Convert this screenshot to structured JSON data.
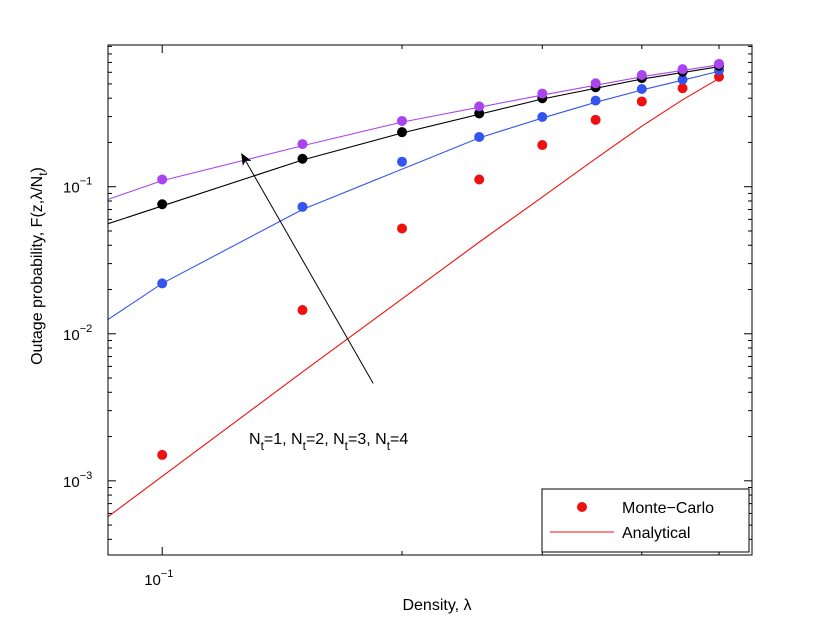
{
  "chart_data": {
    "type": "line",
    "title": "",
    "xlabel": "Density, λ",
    "ylabel": "Outage probability, F(z,λ/N",
    "ylabel_sub": "t",
    "ylabel_close": ")",
    "xscale": "log",
    "yscale": "log",
    "xlim": [
      0.0855,
      0.55
    ],
    "ylim": [
      0.000313,
      0.92
    ],
    "x_ticks": [
      {
        "value": 0.1,
        "base": "10",
        "exp": "−1"
      }
    ],
    "y_ticks": [
      {
        "value": 0.001,
        "base": "10",
        "exp": "−3"
      },
      {
        "value": 0.01,
        "base": "10",
        "exp": "−2"
      },
      {
        "value": 0.1,
        "base": "10",
        "exp": "−1"
      }
    ],
    "x_minor_ticks": [
      0.2,
      0.3,
      0.4,
      0.5
    ],
    "y_minor_ticks": [
      0.0004,
      0.0005,
      0.0006,
      0.0007,
      0.0008,
      0.0009,
      0.002,
      0.003,
      0.004,
      0.005,
      0.006,
      0.007,
      0.008,
      0.009,
      0.02,
      0.03,
      0.04,
      0.05,
      0.06,
      0.07,
      0.08,
      0.09,
      0.2,
      0.3,
      0.4,
      0.5,
      0.6,
      0.7,
      0.8,
      0.9
    ],
    "series": [
      {
        "name": "N_t=1",
        "color": "#ee1111",
        "analytical": {
          "x": [
            0.0855,
            0.15,
            0.25,
            0.3,
            0.35,
            0.4,
            0.45,
            0.5
          ],
          "y": [
            0.00057,
            0.0055,
            0.042,
            0.085,
            0.155,
            0.258,
            0.39,
            0.545
          ]
        },
        "monte_carlo": {
          "x": [
            0.1,
            0.15,
            0.2,
            0.25,
            0.3,
            0.35,
            0.4,
            0.45,
            0.5
          ],
          "y": [
            0.0015,
            0.0145,
            0.052,
            0.112,
            0.192,
            0.285,
            0.38,
            0.468,
            0.56
          ]
        }
      },
      {
        "name": "N_t=2",
        "color": "#3355ee",
        "analytical": {
          "x": [
            0.0855,
            0.1,
            0.15,
            0.25,
            0.3,
            0.35,
            0.4,
            0.45,
            0.5
          ],
          "y": [
            0.0125,
            0.022,
            0.07,
            0.215,
            0.293,
            0.375,
            0.455,
            0.53,
            0.61
          ]
        },
        "monte_carlo": {
          "x": [
            0.1,
            0.15,
            0.2,
            0.25,
            0.3,
            0.35,
            0.4,
            0.45,
            0.5
          ],
          "y": [
            0.022,
            0.073,
            0.148,
            0.218,
            0.298,
            0.385,
            0.462,
            0.535,
            0.62
          ]
        }
      },
      {
        "name": "N_t=3",
        "color": "#000000",
        "analytical": {
          "x": [
            0.0855,
            0.1,
            0.15,
            0.2,
            0.3,
            0.4,
            0.5
          ],
          "y": [
            0.056,
            0.074,
            0.152,
            0.232,
            0.395,
            0.54,
            0.655
          ]
        },
        "monte_carlo": {
          "x": [
            0.1,
            0.15,
            0.2,
            0.25,
            0.3,
            0.35,
            0.4,
            0.45,
            0.5
          ],
          "y": [
            0.076,
            0.155,
            0.235,
            0.315,
            0.4,
            0.475,
            0.548,
            0.605,
            0.665
          ]
        }
      },
      {
        "name": "N_t=4",
        "color": "#aa44ee",
        "analytical": {
          "x": [
            0.0855,
            0.1,
            0.15,
            0.2,
            0.3,
            0.4,
            0.5
          ],
          "y": [
            0.082,
            0.11,
            0.19,
            0.275,
            0.42,
            0.56,
            0.675
          ]
        },
        "monte_carlo": {
          "x": [
            0.1,
            0.15,
            0.2,
            0.25,
            0.3,
            0.35,
            0.4,
            0.45,
            0.5
          ],
          "y": [
            0.112,
            0.195,
            0.28,
            0.352,
            0.43,
            0.505,
            0.575,
            0.63,
            0.685
          ]
        }
      }
    ],
    "annotation": {
      "parts": [
        {
          "base": "N",
          "sub": "t",
          "rest": "=1, "
        },
        {
          "base": "N",
          "sub": "t",
          "rest": "=2, "
        },
        {
          "base": "N",
          "sub": "t",
          "rest": "=3, "
        },
        {
          "base": "N",
          "sub": "t",
          "rest": "=4"
        }
      ],
      "arrow_from": {
        "x": 0.184,
        "y": 0.0046
      },
      "arrow_to": {
        "x": 0.126,
        "y": 0.165
      }
    },
    "legend": {
      "position": "bottom-right",
      "items": [
        {
          "label": "Monte−Carlo",
          "kind": "marker",
          "color": "#ee1111"
        },
        {
          "label": "Analytical",
          "kind": "line",
          "color": "#ee1111"
        }
      ]
    },
    "grid": false
  }
}
